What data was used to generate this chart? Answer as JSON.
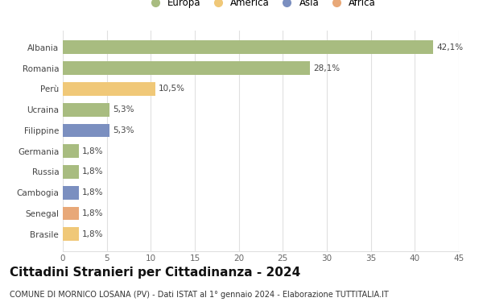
{
  "categories": [
    "Brasile",
    "Senegal",
    "Cambogia",
    "Russia",
    "Germania",
    "Filippine",
    "Ucraina",
    "Perù",
    "Romania",
    "Albania"
  ],
  "values": [
    1.8,
    1.8,
    1.8,
    1.8,
    1.8,
    5.3,
    5.3,
    10.5,
    28.1,
    42.1
  ],
  "labels": [
    "1,8%",
    "1,8%",
    "1,8%",
    "1,8%",
    "1,8%",
    "5,3%",
    "5,3%",
    "10,5%",
    "28,1%",
    "42,1%"
  ],
  "colors": [
    "#f0c878",
    "#e8a878",
    "#7b8fc0",
    "#a8bc80",
    "#a8bc80",
    "#7b8fc0",
    "#a8bc80",
    "#f0c878",
    "#a8bc80",
    "#a8bc80"
  ],
  "legend_labels": [
    "Europa",
    "America",
    "Asia",
    "Africa"
  ],
  "legend_colors": [
    "#a8bc80",
    "#f0c878",
    "#7b8fc0",
    "#e8a878"
  ],
  "title": "Cittadini Stranieri per Cittadinanza - 2024",
  "subtitle": "COMUNE DI MORNICO LOSANA (PV) - Dati ISTAT al 1° gennaio 2024 - Elaborazione TUTTITALIA.IT",
  "xlim": [
    0,
    45
  ],
  "xticks": [
    0,
    5,
    10,
    15,
    20,
    25,
    30,
    35,
    40,
    45
  ],
  "background_color": "#ffffff",
  "grid_color": "#e0e0e0",
  "bar_height": 0.65,
  "label_fontsize": 7.5,
  "tick_fontsize": 7.5,
  "title_fontsize": 11,
  "subtitle_fontsize": 7
}
